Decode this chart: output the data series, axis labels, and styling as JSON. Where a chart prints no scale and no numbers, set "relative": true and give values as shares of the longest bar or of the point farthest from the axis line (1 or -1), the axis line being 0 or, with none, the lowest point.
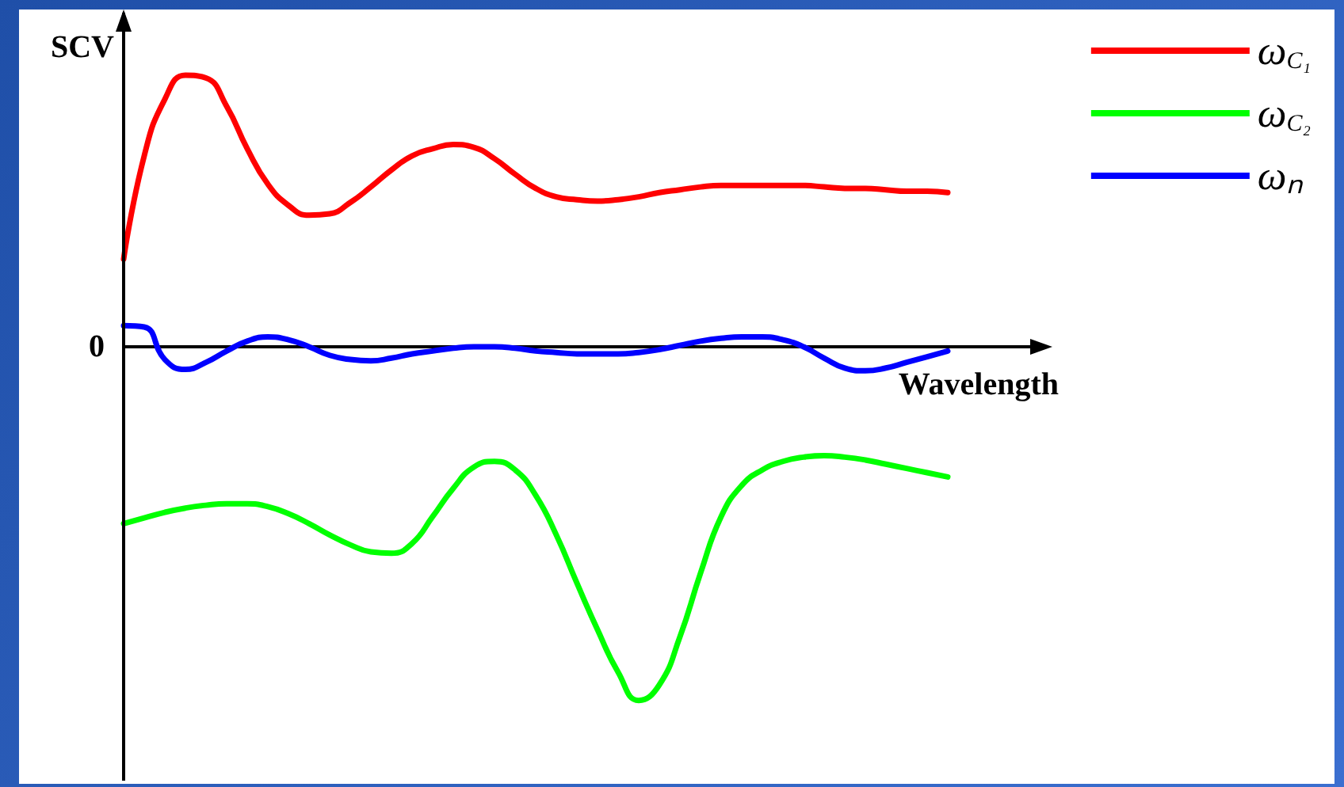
{
  "chart_data": {
    "type": "line",
    "relative": true,
    "ylabel": "SCV",
    "xlabel": "Wavelength",
    "annotations": [
      "0"
    ],
    "legend": "top right",
    "grid": false,
    "marker": "none",
    "line_style": "solid",
    "categories": [
      null,
      null,
      null,
      null,
      null,
      null,
      null,
      null,
      null,
      null,
      null,
      null,
      null,
      null,
      null,
      null,
      null,
      null,
      null,
      null,
      null,
      null,
      null,
      null,
      null,
      null,
      null,
      null,
      null,
      null,
      null,
      null,
      null,
      null,
      null,
      null,
      null,
      null,
      null,
      null,
      null
    ],
    "series": [
      {
        "name": "ω$_{C₁}$",
        "color": "#ff0000",
        "values": [
          0.248,
          0.54,
          0.7,
          0.768,
          0.76,
          0.68,
          0.56,
          0.46,
          0.4,
          0.372,
          0.376,
          0.408,
          0.452,
          0.5,
          0.54,
          0.56,
          0.572,
          0.564,
          0.532,
          0.488,
          0.448,
          0.424,
          0.416,
          0.412,
          0.416,
          0.424,
          0.436,
          0.444,
          0.452,
          0.456,
          0.456,
          0.456,
          0.456,
          0.456,
          0.452,
          0.448,
          0.448,
          0.444,
          0.44,
          0.44,
          0.436
        ]
      },
      {
        "name": "ω$_{C₂}$",
        "color": "#00ff00",
        "values": [
          -0.5,
          -0.484,
          -0.468,
          -0.456,
          -0.448,
          -0.444,
          -0.444,
          -0.452,
          -0.472,
          -0.5,
          -0.532,
          -0.56,
          -0.58,
          -0.584,
          -0.556,
          -0.48,
          -0.4,
          -0.34,
          -0.324,
          -0.348,
          -0.42,
          -0.532,
          -0.668,
          -0.8,
          -0.92,
          -1,
          -0.956,
          -0.82,
          -0.64,
          -0.48,
          -0.392,
          -0.348,
          -0.324,
          -0.312,
          -0.308,
          -0.312,
          -0.32,
          -0.332,
          -0.344,
          -0.356,
          -0.368
        ]
      },
      {
        "name": "ωₙ",
        "color": "#0000ff",
        "values": [
          0.06,
          0.056,
          -0.036,
          -0.064,
          -0.044,
          -0.012,
          0.016,
          0.028,
          0.02,
          0,
          -0.024,
          -0.036,
          -0.04,
          -0.032,
          -0.02,
          -0.012,
          -0.004,
          0,
          0,
          -0.004,
          -0.012,
          -0.016,
          -0.02,
          -0.02,
          -0.02,
          -0.016,
          -0.008,
          0.004,
          0.016,
          0.024,
          0.028,
          0.028,
          0.02,
          0,
          -0.032,
          -0.06,
          -0.068,
          -0.06,
          -0.044,
          -0.028,
          -0.012
        ]
      }
    ]
  }
}
